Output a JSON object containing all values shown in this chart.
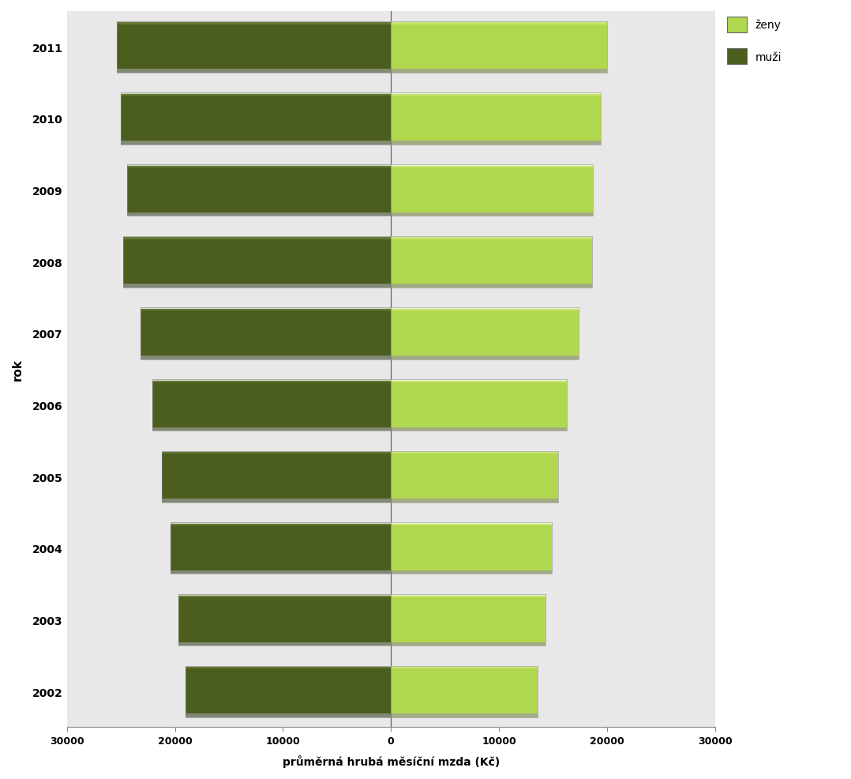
{
  "years": [
    2002,
    2003,
    2004,
    2005,
    2006,
    2007,
    2008,
    2009,
    2010,
    2011
  ],
  "muzi": [
    19000,
    19700,
    20400,
    21200,
    22100,
    23200,
    24800,
    24400,
    25000,
    25400
  ],
  "zeny": [
    13600,
    14300,
    14900,
    15500,
    16300,
    17400,
    18600,
    18700,
    19400,
    20000
  ],
  "muzi_color": "#4b5e1e",
  "muzi_color_light": "#6a7e38",
  "zeny_color": "#b0d84e",
  "zeny_color_light": "#cce87a",
  "muzi_label": "muži",
  "zeny_label": "ženy",
  "xlabel": "průměrná hrubá měsíční mzda (Kč)",
  "ylabel": "rok",
  "xlim": [
    -30000,
    30000
  ],
  "xticks": [
    -30000,
    -20000,
    -10000,
    0,
    10000,
    20000,
    30000
  ],
  "xticklabels": [
    "30000",
    "20000",
    "10000",
    "0",
    "10000",
    "20000",
    "30000"
  ],
  "background_color": "#ffffff",
  "plot_bg_color": "#e8e8e8",
  "bar_height": 0.72,
  "highlight_strip": 0.06,
  "shadow_strip": 0.07
}
